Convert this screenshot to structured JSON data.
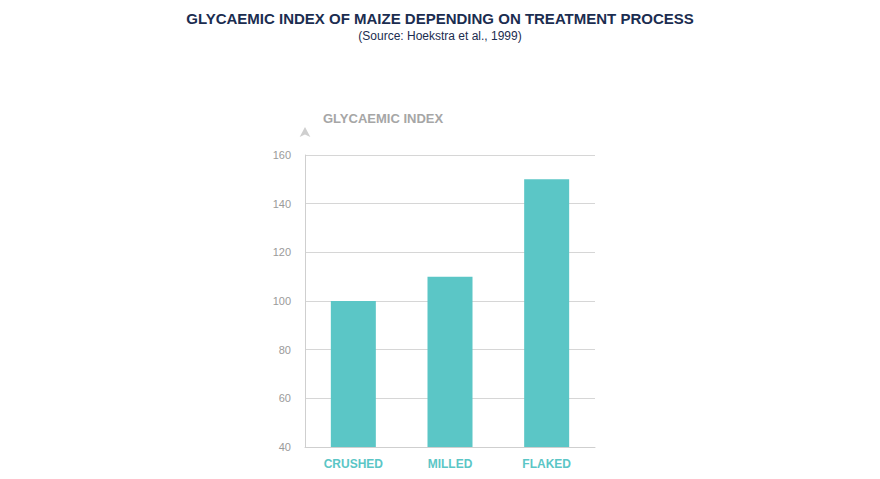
{
  "chart_data": {
    "type": "bar",
    "title": "GLYCAEMIC INDEX OF MAIZE DEPENDING ON TREATMENT PROCESS",
    "subtitle": "(Source: Hoekstra et al., 1999)",
    "y_label": "GLYCAEMIC INDEX",
    "categories": [
      "CRUSHED",
      "MILLED",
      "FLAKED"
    ],
    "values": [
      100,
      110,
      150
    ],
    "color": "#5bc6c6",
    "ylim": [
      40,
      160
    ],
    "yticks": [
      40,
      60,
      80,
      100,
      120,
      140,
      160
    ],
    "grid": true
  }
}
